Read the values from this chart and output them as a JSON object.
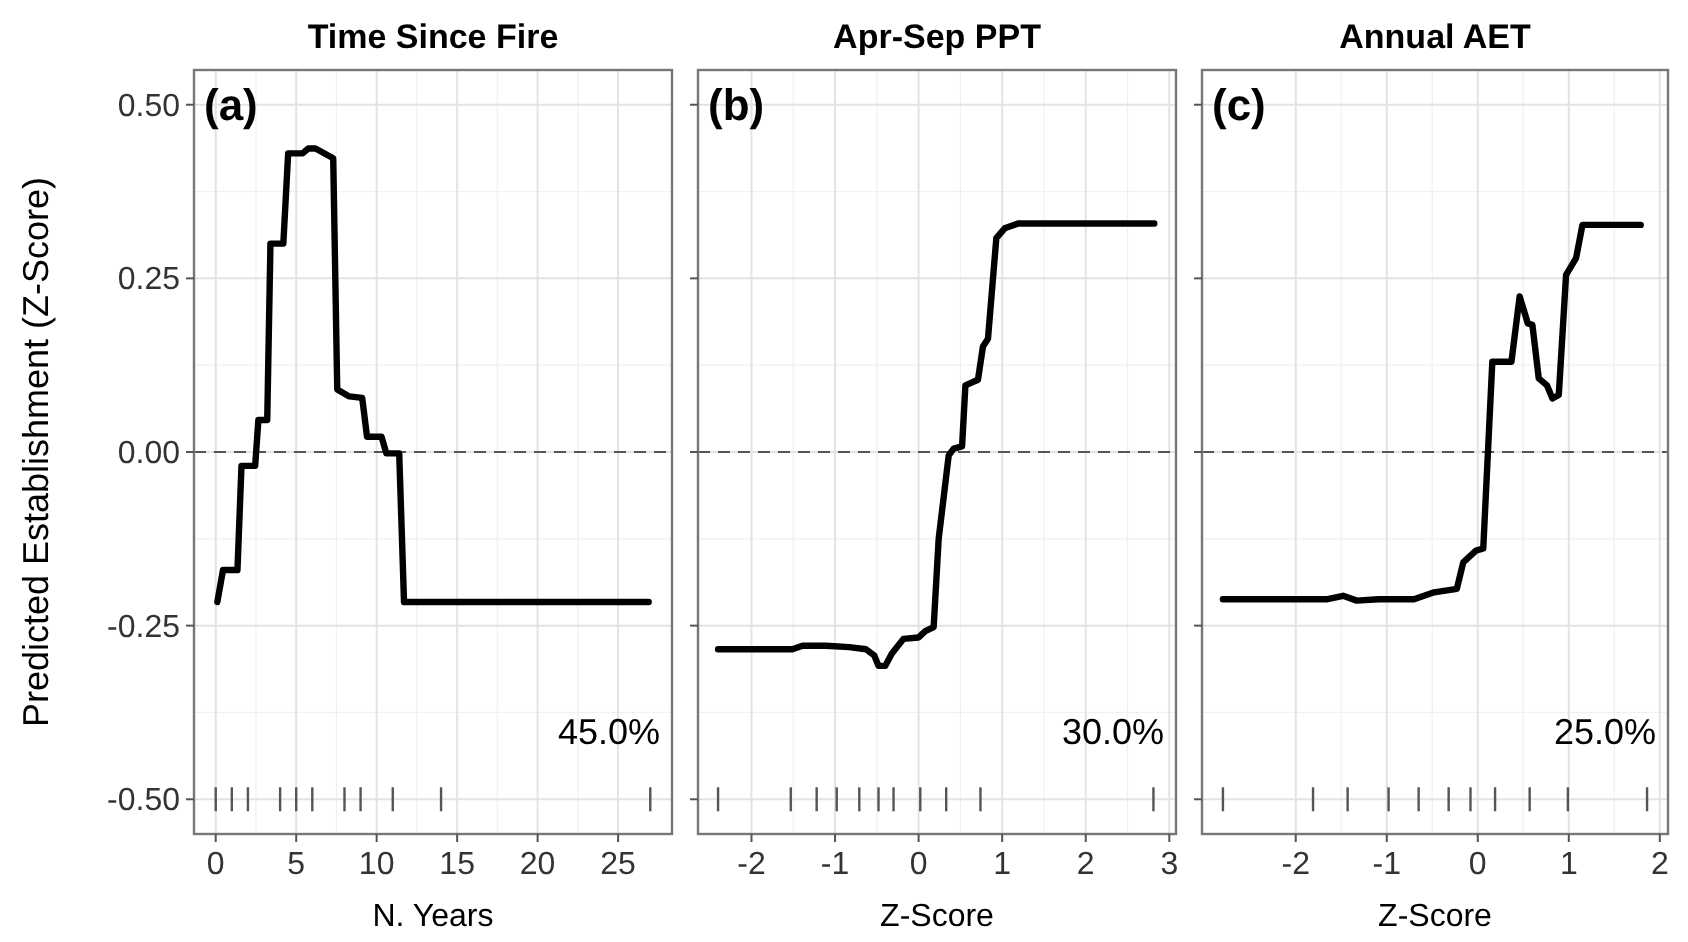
{
  "chart_data": [
    {
      "type": "line",
      "title": "Time Since Fire",
      "xlabel": "N. Years",
      "ylabel": "Predicted Establishment (Z-Score)",
      "annotations": [
        "(a)",
        "45.0%"
      ],
      "xlim": [
        -1.35,
        28.35
      ],
      "xticks": [
        0,
        5,
        10,
        15,
        20,
        25
      ],
      "ylim": [
        -0.55,
        0.55
      ],
      "yticks": [
        {
          "value": 0.5,
          "label": "0.50"
        },
        {
          "value": 0.25,
          "label": "0.25"
        },
        {
          "value": 0,
          "label": "0.00"
        },
        {
          "value": -0.25,
          "label": "-0.25"
        },
        {
          "value": -0.5,
          "label": "-0.50"
        }
      ],
      "grid": true,
      "ref_lines": [
        {
          "axis": "y",
          "value": 0,
          "line_style": "dashed",
          "color": "#555555"
        }
      ],
      "series": [
        {
          "type": "line",
          "color": "#000000",
          "x": [
            0.1,
            0.45,
            1.35,
            1.6,
            2.45,
            2.65,
            3.2,
            3.4,
            4.2,
            4.5,
            5.4,
            5.75,
            6.2,
            7.3,
            7.55,
            8.3,
            9.1,
            9.4,
            10.3,
            10.6,
            11.4,
            11.7,
            26.9
          ],
          "values": [
            -0.216,
            -0.17,
            -0.17,
            -0.02,
            -0.02,
            0.046,
            0.046,
            0.3,
            0.3,
            0.43,
            0.43,
            0.437,
            0.437,
            0.423,
            0.09,
            0.08,
            0.078,
            0.022,
            0.022,
            -0.002,
            -0.002,
            -0.216,
            -0.216
          ]
        },
        {
          "type": "scatter",
          "color": "#555555",
          "x": [
            0,
            1,
            2,
            4,
            5,
            6,
            8,
            9,
            11,
            14,
            27
          ],
          "values": [
            -0.5,
            -0.5,
            -0.5,
            -0.5,
            -0.5,
            -0.5,
            -0.5,
            -0.5,
            -0.5,
            -0.5,
            -0.5
          ]
        }
      ]
    },
    {
      "type": "line",
      "title": "Apr-Sep PPT",
      "xlabel": "Z-Score",
      "annotations": [
        "(b)",
        "30.0%"
      ],
      "tick_labels": "x",
      "xlim": [
        -2.64,
        3.08
      ],
      "xticks": [
        -2,
        -1,
        0,
        1,
        2,
        3
      ],
      "ylim": [
        -0.55,
        0.55
      ],
      "yticks": [
        0.5,
        0.25,
        0,
        -0.25,
        -0.5
      ],
      "grid": true,
      "ref_lines": [
        {
          "axis": "y",
          "value": 0,
          "line_style": "dashed",
          "color": "#555555"
        }
      ],
      "series": [
        {
          "type": "line",
          "color": "#000000",
          "x": [
            -2.4,
            -1.51,
            -1.39,
            -1.11,
            -0.83,
            -0.63,
            -0.53,
            -0.48,
            -0.4,
            -0.32,
            -0.18,
            0,
            0.08,
            0.18,
            0.24,
            0.36,
            0.42,
            0.52,
            0.56,
            0.71,
            0.77,
            0.83,
            0.93,
            1.03,
            1.19,
            2.82
          ],
          "values": [
            -0.284,
            -0.284,
            -0.279,
            -0.279,
            -0.281,
            -0.284,
            -0.293,
            -0.308,
            -0.308,
            -0.29,
            -0.269,
            -0.267,
            -0.258,
            -0.252,
            -0.125,
            -0.005,
            0.005,
            0.008,
            0.096,
            0.104,
            0.152,
            0.163,
            0.308,
            0.322,
            0.329,
            0.329
          ]
        },
        {
          "type": "scatter",
          "color": "#555555",
          "x": [
            -2.4,
            -1.53,
            -1.22,
            -0.98,
            -0.71,
            -0.48,
            -0.3,
            0.02,
            0.33,
            0.74,
            2.81
          ],
          "values": [
            -0.5,
            -0.5,
            -0.5,
            -0.5,
            -0.5,
            -0.5,
            -0.5,
            -0.5,
            -0.5,
            -0.5,
            -0.5
          ]
        }
      ]
    },
    {
      "type": "line",
      "title": "Annual AET",
      "xlabel": "Z-Score",
      "annotations": [
        "(c)",
        "25.0%"
      ],
      "tick_labels": "x",
      "xlim": [
        -3.03,
        2.09
      ],
      "xticks": [
        -2,
        -1,
        0,
        1,
        2
      ],
      "ylim": [
        -0.55,
        0.55
      ],
      "yticks": [
        0.5,
        0.25,
        0,
        -0.25,
        -0.5
      ],
      "grid": true,
      "ref_lines": [
        {
          "axis": "y",
          "value": 0,
          "line_style": "dashed",
          "color": "#555555"
        }
      ],
      "series": [
        {
          "type": "line",
          "color": "#000000",
          "x": [
            -2.8,
            -1.65,
            -1.48,
            -1.33,
            -1.09,
            -0.7,
            -0.48,
            -0.23,
            -0.16,
            -0.02,
            0.06,
            0.16,
            0.37,
            0.46,
            0.55,
            0.6,
            0.67,
            0.76,
            0.82,
            0.89,
            0.97,
            1.08,
            1.15,
            1.79
          ],
          "values": [
            -0.212,
            -0.212,
            -0.207,
            -0.214,
            -0.212,
            -0.212,
            -0.202,
            -0.197,
            -0.159,
            -0.142,
            -0.139,
            0.13,
            0.13,
            0.224,
            0.185,
            0.183,
            0.106,
            0.096,
            0.077,
            0.082,
            0.255,
            0.279,
            0.327,
            0.327
          ]
        },
        {
          "type": "scatter",
          "color": "#555555",
          "x": [
            -2.8,
            -1.81,
            -1.43,
            -0.98,
            -0.65,
            -0.32,
            -0.08,
            0.19,
            0.57,
            0.99,
            1.86
          ],
          "values": [
            -0.5,
            -0.5,
            -0.5,
            -0.5,
            -0.5,
            -0.5,
            -0.5,
            -0.5,
            -0.5,
            -0.5,
            -0.5
          ]
        }
      ]
    }
  ]
}
